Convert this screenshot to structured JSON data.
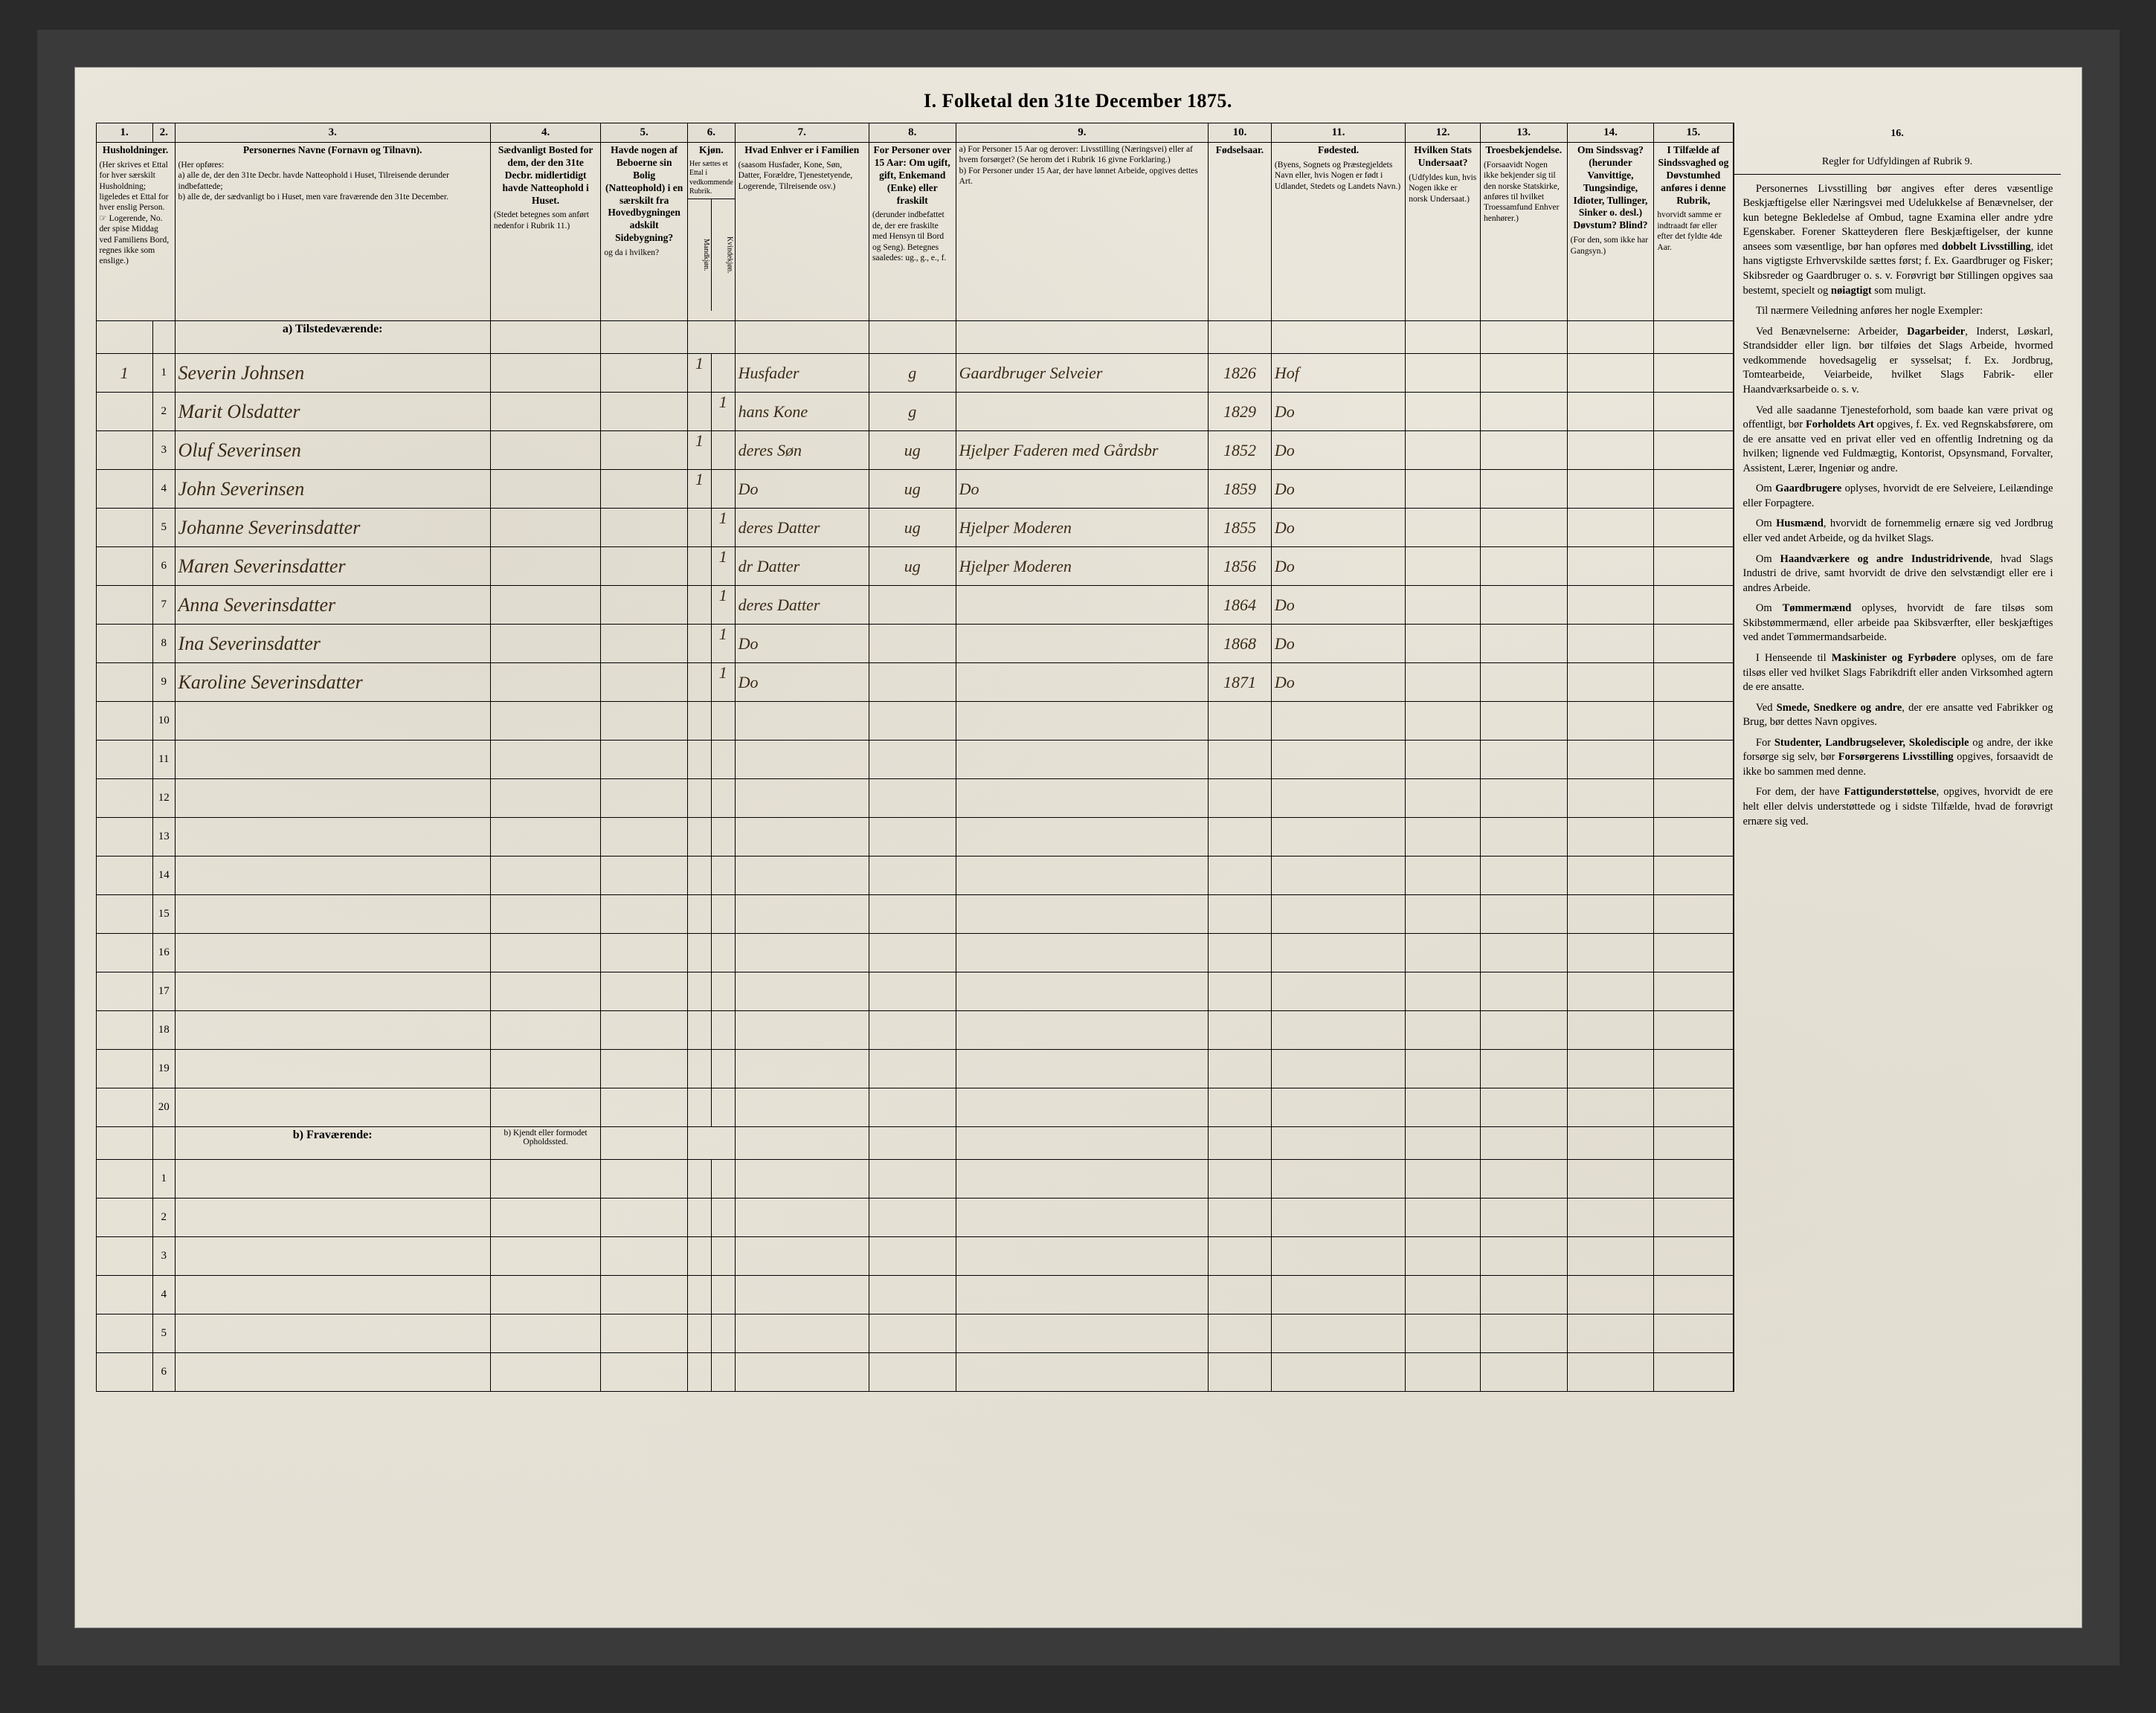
{
  "title": "I.  Folketal den 31te December 1875.",
  "columns": {
    "nums": [
      "1.",
      "2.",
      "3.",
      "4.",
      "5.",
      "6.",
      "7.",
      "8.",
      "9.",
      "10.",
      "11.",
      "12.",
      "13.",
      "14.",
      "15."
    ],
    "c1": {
      "main": "Husholdninger.",
      "sub": "(Her skrives et Ettal for hver særskilt Husholdning; ligeledes et Ettal for hver enslig Person. ☞ Logerende, No. der spise Middag ved Familiens Bord, regnes ikke som enslige.)"
    },
    "c3": {
      "main": "Personernes Navne (Fornavn og Tilnavn).",
      "sub_intro": "(Her opføres:",
      "sub_a": "a) alle de, der den 31te Decbr. havde Natteophold i Huset, Tilreisende derunder indbefattede;",
      "sub_b": "b) alle de, der sædvanligt bo i Huset, men vare fraværende den 31te December."
    },
    "c4": {
      "main": "Sædvanligt Bosted for dem, der den 31te Decbr. midlertidigt havde Natteophold i Huset.",
      "sub": "(Stedet betegnes som anført nedenfor i Rubrik 11.)"
    },
    "c5": {
      "main": "Havde nogen af Beboerne sin Bolig (Natteophold) i en særskilt fra Hovedbygningen adskilt Sidebygning?",
      "sub": "og da i hvilken?"
    },
    "c6": {
      "main": "Kjøn.",
      "sub": "Her sættes et Ettal i vedkommende Rubrik.",
      "left": "Mandkjøn.",
      "right": "Kvindekjøn."
    },
    "c7": {
      "main": "Hvad Enhver er i Familien",
      "sub": "(saasom Husfader, Kone, Søn, Datter, Forældre, Tjenestetyende, Logerende, Tilreisende osv.)"
    },
    "c8": {
      "main": "For Personer over 15 Aar: Om ugift, gift, Enkemand (Enke) eller fraskilt",
      "sub": "(derunder indbefattet de, der ere fraskilte med Hensyn til Bord og Seng). Betegnes saaledes: ug., g., e., f."
    },
    "c9": {
      "sub_a": "a) For Personer 15 Aar og derover: Livsstilling (Næringsvei) eller af hvem forsørget? (Se herom det i Rubrik 16 givne Forklaring.)",
      "sub_b": "b) For Personer under 15 Aar, der have lønnet Arbeide, opgives dettes Art."
    },
    "c10": {
      "main": "Fødselsaar."
    },
    "c11": {
      "main": "Fødested.",
      "sub": "(Byens, Sognets og Præstegjeldets Navn eller, hvis Nogen er født i Udlandet, Stedets og Landets Navn.)"
    },
    "c12": {
      "main": "Hvilken Stats Undersaat?",
      "sub": "(Udfyldes kun, hvis Nogen ikke er norsk Undersaat.)"
    },
    "c13": {
      "main": "Troesbekjendelse.",
      "sub": "(Forsaavidt Nogen ikke bekjender sig til den norske Statskirke, anføres til hvilket Troessamfund Enhver henhører.)"
    },
    "c14": {
      "main": "Om Sindssvag? (herunder Vanvittige, Tungsindige, Idioter, Tullinger, Sinker o. desl.) Døvstum? Blind?",
      "sub": "(For den, som ikke har Gangsyn.)"
    },
    "c15": {
      "main": "I Tilfælde af Sindssvaghed og Døvstumhed anføres i denne Rubrik,",
      "sub": "hvorvidt samme er indtraadt før eller efter det fyldte 4de Aar."
    }
  },
  "section_a": "a) Tilstedeværende:",
  "section_b": "b) Fraværende:",
  "section_b_col4": "b) Kjendt eller formodet Opholdssted.",
  "rows_a": [
    {
      "n": "1",
      "hh": "1",
      "name": "Severin Johnsen",
      "m": "1",
      "k": "",
      "fam": "Husfader",
      "civ": "g",
      "occ": "Gaardbruger Selveier",
      "yr": "1826",
      "birthplace": "Hof"
    },
    {
      "n": "2",
      "hh": "",
      "name": "Marit Olsdatter",
      "m": "",
      "k": "1",
      "fam": "hans Kone",
      "civ": "g",
      "occ": "",
      "yr": "1829",
      "birthplace": "Do"
    },
    {
      "n": "3",
      "hh": "",
      "name": "Oluf Severinsen",
      "m": "1",
      "k": "",
      "fam": "deres Søn",
      "civ": "ug",
      "occ": "Hjelper Faderen med Gårdsbr",
      "yr": "1852",
      "birthplace": "Do"
    },
    {
      "n": "4",
      "hh": "",
      "name": "John Severinsen",
      "m": "1",
      "k": "",
      "fam": "Do",
      "civ": "ug",
      "occ": "Do",
      "yr": "1859",
      "birthplace": "Do"
    },
    {
      "n": "5",
      "hh": "",
      "name": "Johanne Severinsdatter",
      "m": "",
      "k": "1",
      "fam": "deres Datter",
      "civ": "ug",
      "occ": "Hjelper Moderen",
      "yr": "1855",
      "birthplace": "Do"
    },
    {
      "n": "6",
      "hh": "",
      "name": "Maren Severinsdatter",
      "m": "",
      "k": "1",
      "fam": "dr Datter",
      "civ": "ug",
      "occ": "Hjelper Moderen",
      "yr": "1856",
      "birthplace": "Do"
    },
    {
      "n": "7",
      "hh": "",
      "name": "Anna Severinsdatter",
      "m": "",
      "k": "1",
      "fam": "deres Datter",
      "civ": "",
      "occ": "",
      "yr": "1864",
      "birthplace": "Do"
    },
    {
      "n": "8",
      "hh": "",
      "name": "Ina Severinsdatter",
      "m": "",
      "k": "1",
      "fam": "Do",
      "civ": "",
      "occ": "",
      "yr": "1868",
      "birthplace": "Do"
    },
    {
      "n": "9",
      "hh": "",
      "name": "Karoline Severinsdatter",
      "m": "",
      "k": "1",
      "fam": "Do",
      "civ": "",
      "occ": "",
      "yr": "1871",
      "birthplace": "Do"
    },
    {
      "n": "10"
    },
    {
      "n": "11"
    },
    {
      "n": "12"
    },
    {
      "n": "13"
    },
    {
      "n": "14"
    },
    {
      "n": "15"
    },
    {
      "n": "16"
    },
    {
      "n": "17"
    },
    {
      "n": "18"
    },
    {
      "n": "19"
    },
    {
      "n": "20"
    }
  ],
  "rows_b": [
    {
      "n": "1"
    },
    {
      "n": "2"
    },
    {
      "n": "3"
    },
    {
      "n": "4"
    },
    {
      "n": "5"
    },
    {
      "n": "6"
    }
  ],
  "col16": {
    "num": "16.",
    "heading": "Regler for Udfyldingen af Rubrik 9.",
    "paras": [
      "Personernes Livsstilling bør angives efter deres væsentlige Beskjæftigelse eller Næringsvei med Udelukkelse af Benævnelser, der kun betegne Bekledelse af Ombud, tagne Examina eller andre ydre Egenskaber. Forener Skatteyderen flere Beskjæftigelser, der kunne ansees som væsentlige, bør han opføres med <b>dobbelt Livsstilling</b>, idet hans vigtigste Erhvervskilde sættes først; f. Ex. Gaardbruger og Fisker; Skibsreder og Gaardbruger o. s. v. Forøvrigt bør Stillingen opgives saa bestemt, specielt og <b>nøiagtigt</b> som muligt.",
      "Til nærmere Veiledning anføres her nogle Exempler:",
      "Ved Benævnelserne: Arbeider, <b>Dagarbeider</b>, Inderst, Løskarl, Strandsidder eller lign. bør tilføies det Slags Arbeide, hvormed vedkommende hovedsagelig er sysselsat; f. Ex. Jordbrug, Tomtearbeide, Veiarbeide, hvilket Slags Fabrik- eller Haandværksarbeide o. s. v.",
      "Ved alle saadanne Tjenesteforhold, som baade kan være privat og offentligt, bør <b>Forholdets Art</b> opgives, f. Ex. ved Regnskabsførere, om de ere ansatte ved en privat eller ved en offentlig Indretning og da hvilken; lignende ved Fuldmægtig, Kontorist, Opsynsmand, Forvalter, Assistent, Lærer, Ingeniør og andre.",
      "Om <b>Gaardbrugere</b> oplyses, hvorvidt de ere Selveiere, Leilændinge eller Forpagtere.",
      "Om <b>Husmænd</b>, hvorvidt de fornemmelig ernære sig ved Jordbrug eller ved andet Arbeide, og da hvilket Slags.",
      "Om <b>Haandværkere og andre Industridrivende</b>, hvad Slags Industri de drive, samt hvorvidt de drive den selvstændigt eller ere i andres Arbeide.",
      "Om <b>Tømmermænd</b> oplyses, hvorvidt de fare tilsøs som Skibstømmermænd, eller arbeide paa Skibsværfter, eller beskjæftiges ved andet Tømmermandsarbeide.",
      "I Henseende til <b>Maskinister og Fyrbødere</b> oplyses, om de fare tilsøs eller ved hvilket Slags Fabrikdrift eller anden Virksomhed agtern de ere ansatte.",
      "Ved <b>Smede, Snedkere og andre</b>, der ere ansatte ved Fabrikker og Brug, bør dettes Navn opgives.",
      "For <b>Studenter, Landbrugselever, Skoledisciple</b> og andre, der ikke forsørge sig selv, bør <b>Forsørgerens Livsstilling</b> opgives, forsaavidt de ikke bo sammen med denne.",
      "For dem, der have <b>Fattigunderstøttelse</b>, opgives, hvorvidt de ere helt eller delvis understøttede og i sidste Tilfælde, hvad de forøvrigt ernære sig ved."
    ]
  },
  "colwidths": {
    "c1": 72,
    "c2": 28,
    "c3": 400,
    "c4": 140,
    "c5": 110,
    "c6": 60,
    "c7": 170,
    "c8": 110,
    "c9": 320,
    "c10": 80,
    "c11": 170,
    "c12": 95,
    "c13": 110,
    "c14": 110,
    "c15": 100
  }
}
